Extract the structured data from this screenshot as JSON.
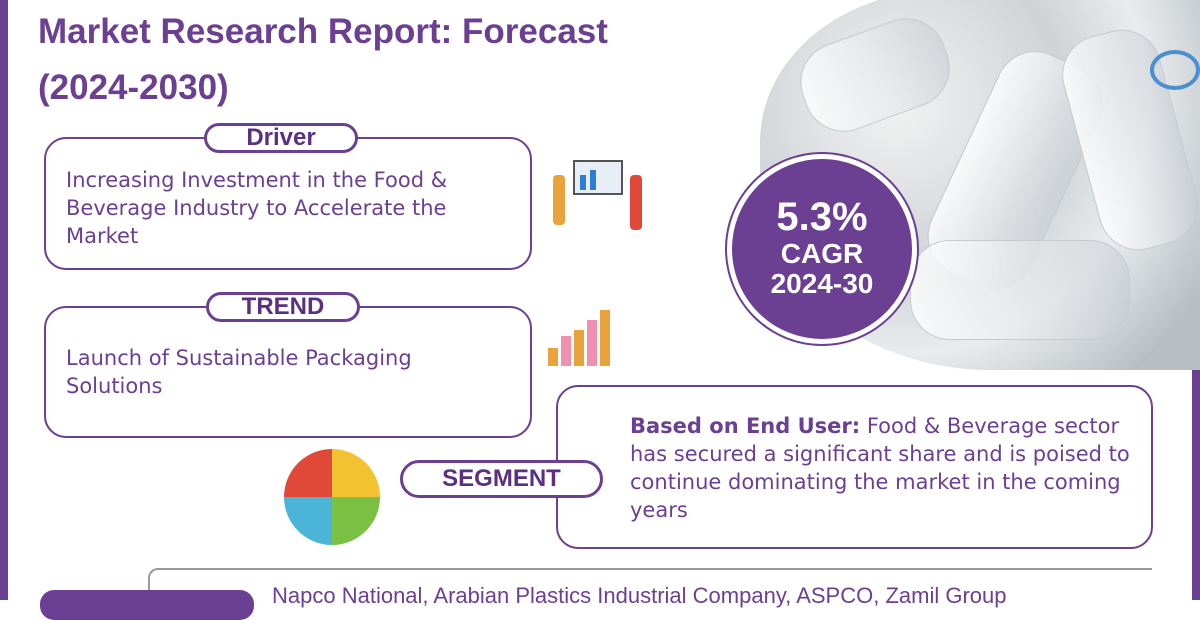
{
  "title": {
    "line1": "Market Research Report: Forecast",
    "line2": "(2024-2030)"
  },
  "driver": {
    "label": "Driver",
    "text": "Increasing Investment in the Food & Beverage Industry to Accelerate the Market"
  },
  "trend": {
    "label": "TREND",
    "text": "Launch of Sustainable Packaging Solutions"
  },
  "cagr": {
    "value": "5.3%",
    "label": "CAGR",
    "period": "2024-30"
  },
  "segment": {
    "label": "SEGMENT",
    "bold": "Based on End User:",
    "text": " Food & Beverage sector has secured a significant share and is poised to continue dominating the market in the coming years"
  },
  "players": {
    "text": "Napco National, Arabian Plastics Industrial Company, ASPCO, Zamil Group"
  },
  "colors": {
    "accent": "#6b3f92"
  }
}
